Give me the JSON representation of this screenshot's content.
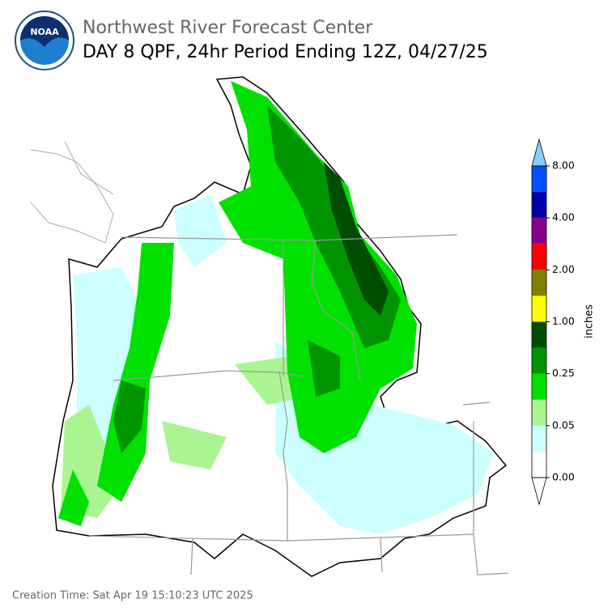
{
  "header": {
    "logo": "NOAA",
    "title": "Northwest River Forecast Center",
    "subtitle": "DAY 8 QPF, 24hr Period Ending 12Z, 04/27/25"
  },
  "colorbar": {
    "label": "inches",
    "colors": [
      "#ffffff",
      "#ccffff",
      "#aaf592",
      "#00e100",
      "#009500",
      "#004c00",
      "#ffff00",
      "#808000",
      "#ff0000",
      "#8b008b",
      "#0000aa",
      "#0050ff"
    ],
    "over_color": "#87cefa",
    "under_color": "#ffffff",
    "ticks": [
      {
        "value": 0,
        "label": "0.00"
      },
      {
        "value": 0.05,
        "label": "0.05"
      },
      {
        "value": 0.25,
        "label": "0.25"
      },
      {
        "value": 1,
        "label": "1.00"
      },
      {
        "value": 2,
        "label": "2.00"
      },
      {
        "value": 4,
        "label": "4.00"
      },
      {
        "value": 8,
        "label": "8.00"
      }
    ]
  },
  "footer": {
    "creation_time": "Creation Time: Sat Apr 19 15:10:23 UTC 2025"
  }
}
